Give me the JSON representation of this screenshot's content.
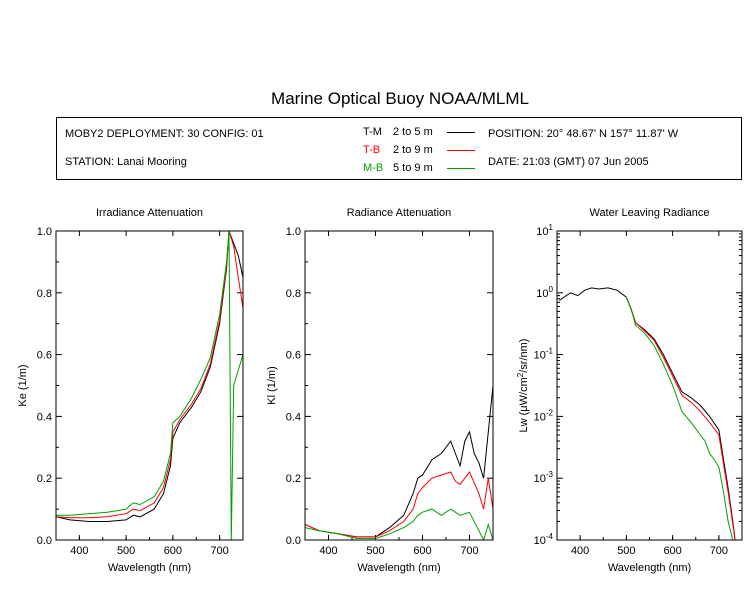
{
  "title": "Marine Optical Buoy NOAA/MLML",
  "info": {
    "deployment": "MOBY2 DEPLOYMENT: 30 CONFIG: 01",
    "station": "STATION: Lanai Mooring",
    "position": "POSITION: 20° 48.67' N   157° 11.87' W",
    "date": "DATE: 21:03 (GMT) 07 Jun 2005"
  },
  "legend": [
    {
      "code": "T-M",
      "range": "2 to 5  m",
      "color": "#000000"
    },
    {
      "code": "T-B",
      "range": "2 to 9  m",
      "color": "#ff0000"
    },
    {
      "code": "M-B",
      "range": "5 to 9  m",
      "color": "#00a000"
    }
  ],
  "chart_data": [
    {
      "type": "line",
      "title": "Irradiance Attenuation",
      "xlabel": "Wavelength (nm)",
      "ylabel": "Ke  (1/m)",
      "xlim": [
        350,
        750
      ],
      "ylim": [
        0,
        1.0
      ],
      "xticks": [
        "400",
        "500",
        "600",
        "700"
      ],
      "yticks": [
        "0.0",
        "0.2",
        "0.4",
        "0.6",
        "0.8",
        "1.0"
      ],
      "series": [
        {
          "name": "T-M",
          "color": "#000000",
          "x": [
            350,
            380,
            420,
            460,
            500,
            515,
            530,
            560,
            580,
            595,
            600,
            615,
            640,
            660,
            680,
            700,
            715,
            720,
            730,
            740,
            750
          ],
          "y": [
            0.075,
            0.065,
            0.06,
            0.06,
            0.065,
            0.08,
            0.075,
            0.1,
            0.15,
            0.24,
            0.33,
            0.38,
            0.43,
            0.48,
            0.56,
            0.7,
            0.88,
            1.0,
            0.96,
            0.92,
            0.85
          ]
        },
        {
          "name": "T-B",
          "color": "#ff0000",
          "x": [
            350,
            380,
            420,
            460,
            500,
            515,
            530,
            560,
            580,
            595,
            600,
            615,
            640,
            660,
            680,
            700,
            715,
            720,
            730,
            740,
            750
          ],
          "y": [
            0.075,
            0.072,
            0.072,
            0.075,
            0.085,
            0.1,
            0.095,
            0.12,
            0.17,
            0.26,
            0.35,
            0.39,
            0.44,
            0.49,
            0.57,
            0.71,
            0.89,
            1.0,
            0.95,
            0.85,
            0.75
          ]
        },
        {
          "name": "M-B",
          "color": "#00a000",
          "x": [
            350,
            380,
            420,
            460,
            500,
            515,
            530,
            560,
            580,
            595,
            600,
            615,
            640,
            660,
            680,
            700,
            715,
            720,
            725,
            730,
            740,
            750
          ],
          "y": [
            0.08,
            0.08,
            0.085,
            0.09,
            0.1,
            0.12,
            0.115,
            0.14,
            0.19,
            0.28,
            0.38,
            0.4,
            0.46,
            0.52,
            0.59,
            0.73,
            0.9,
            1.0,
            0.0,
            0.5,
            0.55,
            0.6
          ]
        }
      ]
    },
    {
      "type": "line",
      "title": "Radiance Attenuation",
      "xlabel": "Wavelength (nm)",
      "ylabel": "Kl  (1/m)",
      "xlim": [
        350,
        750
      ],
      "ylim": [
        0,
        1.0
      ],
      "xticks": [
        "400",
        "500",
        "600",
        "700"
      ],
      "yticks": [
        "0.0",
        "0.2",
        "0.4",
        "0.6",
        "0.8",
        "1.0"
      ],
      "series": [
        {
          "name": "T-M",
          "color": "#000000",
          "x": [
            350,
            380,
            420,
            460,
            500,
            530,
            560,
            580,
            590,
            600,
            620,
            640,
            660,
            670,
            680,
            690,
            700,
            710,
            720,
            730,
            740,
            750
          ],
          "y": [
            0.05,
            0.03,
            0.02,
            0.01,
            0.01,
            0.04,
            0.08,
            0.15,
            0.2,
            0.21,
            0.26,
            0.28,
            0.32,
            0.28,
            0.24,
            0.32,
            0.35,
            0.28,
            0.25,
            0.2,
            0.35,
            0.5
          ]
        },
        {
          "name": "T-B",
          "color": "#ff0000",
          "x": [
            350,
            380,
            420,
            460,
            500,
            530,
            560,
            580,
            590,
            600,
            620,
            640,
            660,
            670,
            680,
            700,
            720,
            730,
            740,
            750
          ],
          "y": [
            0.05,
            0.03,
            0.02,
            0.01,
            0.01,
            0.03,
            0.06,
            0.1,
            0.15,
            0.17,
            0.2,
            0.21,
            0.22,
            0.19,
            0.18,
            0.22,
            0.15,
            0.1,
            0.2,
            0.1
          ]
        },
        {
          "name": "M-B",
          "color": "#00a000",
          "x": [
            350,
            380,
            420,
            460,
            500,
            530,
            560,
            580,
            590,
            600,
            620,
            640,
            660,
            680,
            700,
            720,
            730,
            740,
            750
          ],
          "y": [
            0.04,
            0.03,
            0.02,
            0.005,
            0.005,
            0.02,
            0.04,
            0.06,
            0.08,
            0.09,
            0.1,
            0.08,
            0.1,
            0.08,
            0.09,
            0.03,
            0.0,
            0.05,
            0.0
          ]
        }
      ]
    },
    {
      "type": "line",
      "title": "Water Leaving Radiance",
      "xlabel": "Wavelength (nm)",
      "ylabel_main": "Lw  (",
      "ylabel_mu": "μ",
      "ylabel_rest": "W/cm",
      "ylabel_sup": "2",
      "ylabel_tail": "/sr/nm)",
      "xlim": [
        350,
        750
      ],
      "ylim": [
        0.0001,
        10
      ],
      "yscale": "log",
      "xticks": [
        "400",
        "500",
        "600",
        "700"
      ],
      "yticks_base": "10",
      "yticks_exp": [
        "1",
        "0",
        "-1",
        "-2",
        "-3",
        "-4"
      ],
      "series": [
        {
          "name": "T-M",
          "color": "#000000",
          "x": [
            355,
            370,
            380,
            395,
            410,
            425,
            440,
            460,
            480,
            500,
            510,
            520,
            540,
            560,
            580,
            600,
            620,
            640,
            660,
            680,
            700,
            710,
            720,
            730,
            735
          ],
          "y": [
            0.75,
            0.9,
            1.0,
            0.9,
            1.1,
            1.2,
            1.15,
            1.2,
            1.1,
            0.85,
            0.55,
            0.33,
            0.25,
            0.18,
            0.1,
            0.05,
            0.025,
            0.02,
            0.015,
            0.01,
            0.006,
            0.002,
            0.0007,
            0.0002,
            0.0001
          ]
        },
        {
          "name": "T-B",
          "color": "#ff0000",
          "x": [
            500,
            510,
            520,
            540,
            560,
            580,
            600,
            620,
            640,
            660,
            680,
            700,
            710,
            720,
            730,
            735
          ],
          "y": [
            0.85,
            0.55,
            0.33,
            0.24,
            0.17,
            0.09,
            0.045,
            0.022,
            0.017,
            0.012,
            0.008,
            0.005,
            0.0017,
            0.0006,
            0.00018,
            0.0001
          ]
        },
        {
          "name": "M-B",
          "color": "#00a000",
          "x": [
            500,
            510,
            520,
            540,
            560,
            580,
            600,
            620,
            640,
            660,
            670,
            680,
            690,
            700,
            710,
            720,
            730
          ],
          "y": [
            0.85,
            0.55,
            0.3,
            0.22,
            0.14,
            0.07,
            0.032,
            0.012,
            0.008,
            0.005,
            0.004,
            0.0025,
            0.002,
            0.0015,
            0.0006,
            0.0002,
            0.0001
          ]
        }
      ]
    }
  ]
}
